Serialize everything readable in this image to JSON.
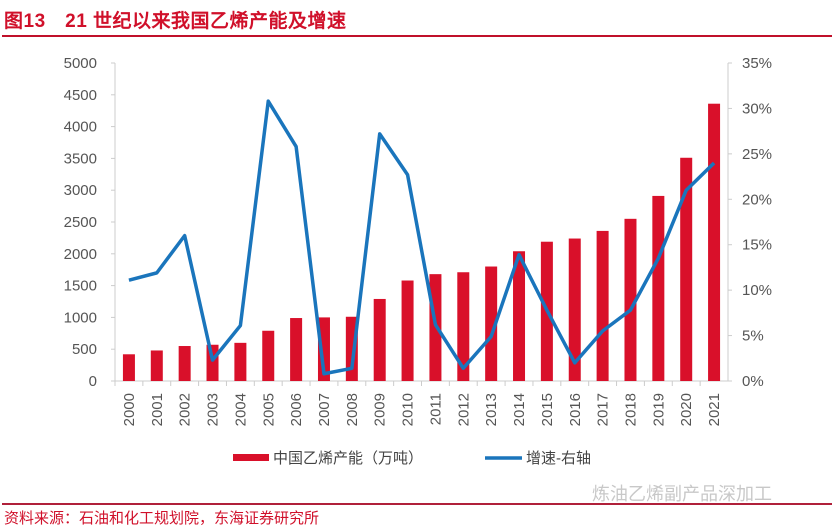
{
  "header": {
    "title": "图13　21 世纪以来我国乙烯产能及增速"
  },
  "footer": {
    "source": "资料来源：石油和化工规划院，东海证券研究所",
    "watermark": "炼油乙烯副产品深加工"
  },
  "chart_data": {
    "type": "bar+line",
    "categories": [
      "2000",
      "2001",
      "2002",
      "2003",
      "2004",
      "2005",
      "2006",
      "2007",
      "2008",
      "2009",
      "2010",
      "2011",
      "2012",
      "2013",
      "2014",
      "2015",
      "2016",
      "2017",
      "2018",
      "2019",
      "2020",
      "2021"
    ],
    "series": [
      {
        "name": "中国乙烯产能（万吨）",
        "type": "bar",
        "axis": "left",
        "color": "#d9102a",
        "values": [
          420,
          480,
          550,
          570,
          600,
          790,
          990,
          1000,
          1010,
          1290,
          1580,
          1680,
          1710,
          1800,
          2040,
          2190,
          2240,
          2360,
          2550,
          2910,
          3510,
          4360
        ]
      },
      {
        "name": "增速-右轴",
        "type": "line",
        "axis": "right",
        "color": "#1a75bc",
        "values": [
          11.1,
          11.9,
          16.0,
          2.3,
          6.1,
          30.8,
          25.8,
          0.8,
          1.4,
          27.2,
          22.7,
          6.2,
          1.4,
          4.9,
          13.9,
          7.8,
          2.0,
          5.5,
          7.8,
          13.5,
          21.0,
          24.0
        ]
      }
    ],
    "y_left": {
      "min": 0,
      "max": 5000,
      "ticks": [
        "0",
        "500",
        "1000",
        "1500",
        "2000",
        "2500",
        "3000",
        "3500",
        "4000",
        "4500",
        "5000"
      ]
    },
    "y_right": {
      "min": 0,
      "max": 35,
      "ticks": [
        "0%",
        "5%",
        "10%",
        "15%",
        "20%",
        "25%",
        "30%",
        "35%"
      ]
    },
    "grid": false,
    "legend": "bottom"
  }
}
